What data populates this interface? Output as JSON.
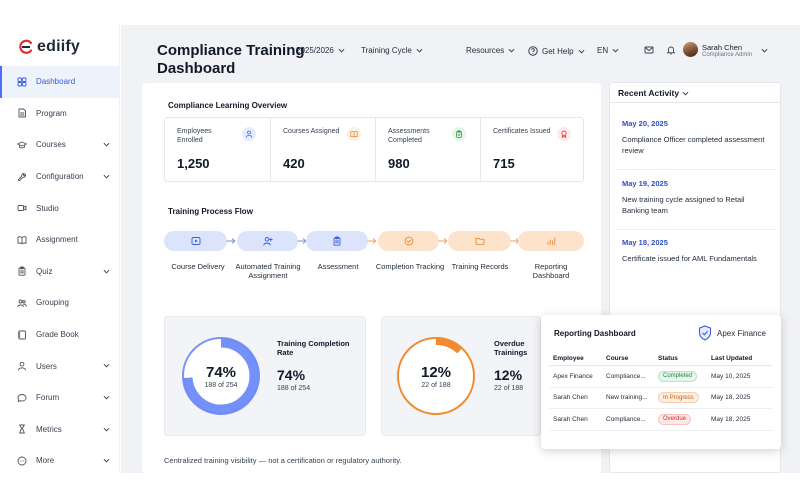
{
  "app": {
    "name": "ediify"
  },
  "sidebar": {
    "items": [
      {
        "label": "Dashboard",
        "icon": "grid-icon",
        "active": true,
        "expandable": false
      },
      {
        "label": "Program",
        "icon": "document-icon",
        "expandable": false
      },
      {
        "label": "Courses",
        "icon": "graduation-cap-icon",
        "expandable": true
      },
      {
        "label": "Configuration",
        "icon": "wrench-icon",
        "expandable": true
      },
      {
        "label": "Studio",
        "icon": "video-icon",
        "expandable": false
      },
      {
        "label": "Assignment",
        "icon": "book-icon",
        "expandable": false
      },
      {
        "label": "Quiz",
        "icon": "clipboard-icon",
        "expandable": true
      },
      {
        "label": "Grouping",
        "icon": "users-icon",
        "expandable": false
      },
      {
        "label": "Grade Book",
        "icon": "notebook-icon",
        "expandable": false
      },
      {
        "label": "Users",
        "icon": "user-icon",
        "expandable": true
      },
      {
        "label": "Forum",
        "icon": "chat-icon",
        "expandable": true
      },
      {
        "label": "Metrics",
        "icon": "hourglass-icon",
        "expandable": true
      },
      {
        "label": "More",
        "icon": "more-icon",
        "expandable": true
      }
    ]
  },
  "header": {
    "title": "Compliance Training Dashboard",
    "year": "2025/2026",
    "cycle": "Training Cycle",
    "resources": "Resources",
    "help": "Get Help",
    "language": "EN",
    "user_name": "Sarah Chen",
    "user_role": "Compliance Admin"
  },
  "overview": {
    "title": "Compliance Learning Overview",
    "kpis": [
      {
        "label": "Employees Enrolled",
        "value": "1,250",
        "icon": "user-icon",
        "color": "#4c6ef5",
        "bg": "#e7ecfd"
      },
      {
        "label": "Courses Assigned",
        "value": "420",
        "icon": "book-icon",
        "color": "#e8893a",
        "bg": "#fdf0e4"
      },
      {
        "label": "Assessments Completed",
        "value": "980",
        "icon": "clipboard-check-icon",
        "color": "#2f9e44",
        "bg": "#e6f6ea"
      },
      {
        "label": "Certificates Issued",
        "value": "715",
        "icon": "award-icon",
        "color": "#e03131",
        "bg": "#fdeaea"
      }
    ]
  },
  "flow": {
    "title": "Training Process Flow",
    "steps": [
      {
        "label": "Course Delivery",
        "icon": "play-icon",
        "tone": "blue"
      },
      {
        "label": "Automated Training Assignment",
        "icon": "add-user-icon",
        "tone": "blue"
      },
      {
        "label": "Assessment",
        "icon": "clipboard-icon",
        "tone": "blue"
      },
      {
        "label": "Completion Tracking",
        "icon": "check-circle-icon",
        "tone": "orange"
      },
      {
        "label": "Training Records",
        "icon": "folder-icon",
        "tone": "orange"
      },
      {
        "label": "Reporting Dashboard",
        "icon": "bar-chart-icon",
        "tone": "orange"
      }
    ]
  },
  "metrics": {
    "completion": {
      "title": "Training Completion Rate",
      "pct_text": "74%",
      "sub": "188 of 254",
      "fraction": 0.74,
      "color": "#5c7cfa"
    },
    "overdue": {
      "title": "Overdue Trainings",
      "pct_text": "12%",
      "sub": "22 of 188",
      "fraction": 0.12,
      "color": "#f08c2e"
    }
  },
  "footnote": "Centralized training visibility — not a certification or regulatory authority.",
  "activity": {
    "title": "Recent Activity",
    "items": [
      {
        "date": "May 20, 2025",
        "text": "Compliance Officer completed assessment review"
      },
      {
        "date": "May 19, 2025",
        "text": "New training cycle assigned to Retail Banking team"
      },
      {
        "date": "May 18, 2025",
        "text": "Certificate issued for AML Fundamentals"
      }
    ]
  },
  "report": {
    "title": "Reporting Dashboard",
    "brand": "Apex Finance",
    "columns": [
      "Employee",
      "Course",
      "Status",
      "Last Updated"
    ],
    "rows": [
      {
        "employee": "Apex Finance",
        "course": "Compliance...",
        "status": "Completed",
        "status_tone": "green",
        "updated": "May 10, 2025"
      },
      {
        "employee": "Sarah Chen",
        "course": "New training...",
        "status": "In Progress",
        "status_tone": "orange",
        "updated": "May 18, 2025"
      },
      {
        "employee": "Sarah Chen",
        "course": "Compliance...",
        "status": "Overdue",
        "status_tone": "red",
        "updated": "May 18, 2025"
      }
    ]
  }
}
